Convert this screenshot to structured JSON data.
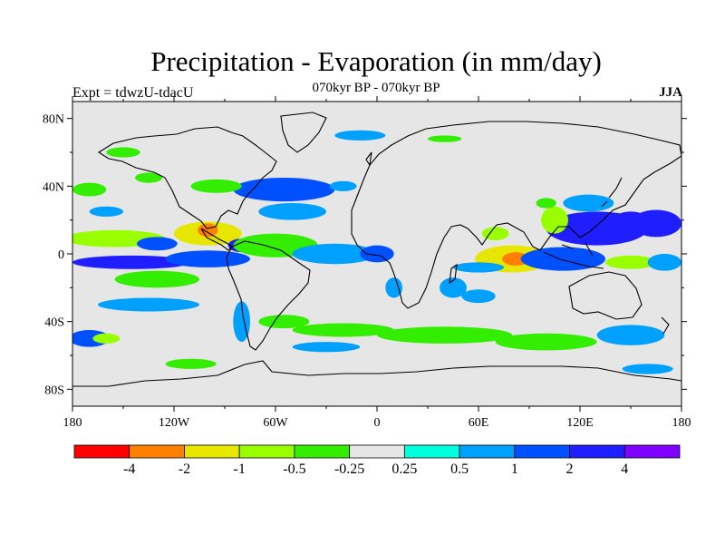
{
  "chart_data": {
    "type": "heatmap",
    "title": "Precipitation - Evaporation (in mm/day)",
    "subtitle": "070kyr BP - 070kyr BP",
    "left_string": "Expt = tdwzU-tdacU",
    "right_string": "JJA",
    "x_ticks": [
      "180",
      "120W",
      "60W",
      "0",
      "60E",
      "120E",
      "180"
    ],
    "y_ticks": [
      "80N",
      "40N",
      "0",
      "40S",
      "80S"
    ],
    "xlim": [
      -180,
      180
    ],
    "ylim": [
      -90,
      90
    ],
    "colorbar": {
      "levels": [
        "-4",
        "-2",
        "-1",
        "-0.5",
        "-0.25",
        "0.25",
        "0.5",
        "1",
        "2",
        "4"
      ],
      "colors": [
        "#ff0000",
        "#ff7f00",
        "#e6e600",
        "#99ff00",
        "#33ee00",
        "#e6e6e6",
        "#00ffdd",
        "#00a0ff",
        "#0050ff",
        "#1e1eff",
        "#8000ff"
      ]
    },
    "regions": [
      {
        "lon": -155,
        "lat": 9,
        "rx": 30,
        "ry": 5,
        "v": -0.8
      },
      {
        "lon": -100,
        "lat": 12,
        "rx": 20,
        "ry": 7,
        "v": -1.5
      },
      {
        "lon": -100,
        "lat": 14,
        "rx": 6,
        "ry": 4,
        "v": -2.2
      },
      {
        "lon": -130,
        "lat": 6,
        "rx": 12,
        "ry": 4,
        "v": 1.5
      },
      {
        "lon": -145,
        "lat": -5,
        "rx": 35,
        "ry": 4,
        "v": 2.2
      },
      {
        "lon": -100,
        "lat": -3,
        "rx": 25,
        "ry": 5,
        "v": 1.5
      },
      {
        "lon": -80,
        "lat": 5,
        "rx": 8,
        "ry": 4,
        "v": 2.5
      },
      {
        "lon": -60,
        "lat": 5,
        "rx": 25,
        "ry": 7,
        "v": -0.4
      },
      {
        "lon": -25,
        "lat": 0,
        "rx": 25,
        "ry": 6,
        "v": 0.8
      },
      {
        "lon": 0,
        "lat": 0,
        "rx": 10,
        "ry": 5,
        "v": 1.6
      },
      {
        "lon": -55,
        "lat": 38,
        "rx": 30,
        "ry": 7,
        "v": 1.2
      },
      {
        "lon": -50,
        "lat": 25,
        "rx": 20,
        "ry": 5,
        "v": 0.6
      },
      {
        "lon": -20,
        "lat": 40,
        "rx": 8,
        "ry": 3,
        "v": 0.6
      },
      {
        "lon": -95,
        "lat": 40,
        "rx": 15,
        "ry": 4,
        "v": -0.4
      },
      {
        "lon": -170,
        "lat": 38,
        "rx": 10,
        "ry": 4,
        "v": -0.4
      },
      {
        "lon": -135,
        "lat": 45,
        "rx": 8,
        "ry": 3,
        "v": -0.4
      },
      {
        "lon": -160,
        "lat": 25,
        "rx": 10,
        "ry": 3,
        "v": 0.5
      },
      {
        "lon": 80,
        "lat": -3,
        "rx": 22,
        "ry": 8,
        "v": -1.2
      },
      {
        "lon": 82,
        "lat": -3,
        "rx": 8,
        "ry": 4,
        "v": -3
      },
      {
        "lon": 60,
        "lat": -8,
        "rx": 15,
        "ry": 3,
        "v": 0.8
      },
      {
        "lon": 70,
        "lat": 12,
        "rx": 8,
        "ry": 4,
        "v": -0.8
      },
      {
        "lon": 110,
        "lat": -3,
        "rx": 25,
        "ry": 7,
        "v": 1.6
      },
      {
        "lon": 130,
        "lat": 15,
        "rx": 30,
        "ry": 10,
        "v": 2.2
      },
      {
        "lon": 150,
        "lat": 20,
        "rx": 10,
        "ry": 5,
        "v": 3
      },
      {
        "lon": 165,
        "lat": 18,
        "rx": 15,
        "ry": 8,
        "v": 2.5
      },
      {
        "lon": 125,
        "lat": 30,
        "rx": 15,
        "ry": 5,
        "v": 0.7
      },
      {
        "lon": 105,
        "lat": 20,
        "rx": 8,
        "ry": 8,
        "v": -0.6
      },
      {
        "lon": 100,
        "lat": 30,
        "rx": 6,
        "ry": 3,
        "v": -0.4
      },
      {
        "lon": 150,
        "lat": -5,
        "rx": 15,
        "ry": 4,
        "v": -0.6
      },
      {
        "lon": 170,
        "lat": -5,
        "rx": 10,
        "ry": 5,
        "v": 0.8
      },
      {
        "lon": 45,
        "lat": -20,
        "rx": 8,
        "ry": 6,
        "v": 0.7
      },
      {
        "lon": 60,
        "lat": -25,
        "rx": 10,
        "ry": 4,
        "v": 0.6
      },
      {
        "lon": 10,
        "lat": -20,
        "rx": 5,
        "ry": 6,
        "v": 0.5
      },
      {
        "lon": -80,
        "lat": -40,
        "rx": 5,
        "ry": 12,
        "v": 0.8
      },
      {
        "lon": -55,
        "lat": -40,
        "rx": 15,
        "ry": 4,
        "v": -0.4
      },
      {
        "lon": -130,
        "lat": -15,
        "rx": 25,
        "ry": 5,
        "v": -0.4
      },
      {
        "lon": -135,
        "lat": -30,
        "rx": 30,
        "ry": 4,
        "v": 0.6
      },
      {
        "lon": -170,
        "lat": -50,
        "rx": 12,
        "ry": 5,
        "v": 1.1
      },
      {
        "lon": -160,
        "lat": -50,
        "rx": 8,
        "ry": 3,
        "v": -0.6
      },
      {
        "lon": -20,
        "lat": -45,
        "rx": 30,
        "ry": 4,
        "v": -0.4
      },
      {
        "lon": 40,
        "lat": -48,
        "rx": 40,
        "ry": 5,
        "v": -0.4
      },
      {
        "lon": 100,
        "lat": -52,
        "rx": 30,
        "ry": 5,
        "v": -0.4
      },
      {
        "lon": 150,
        "lat": -48,
        "rx": 20,
        "ry": 6,
        "v": 0.7
      },
      {
        "lon": -30,
        "lat": -55,
        "rx": 20,
        "ry": 3,
        "v": 0.6
      },
      {
        "lon": -110,
        "lat": -65,
        "rx": 15,
        "ry": 3,
        "v": -0.4
      },
      {
        "lon": 160,
        "lat": -68,
        "rx": 15,
        "ry": 3,
        "v": 0.6
      },
      {
        "lon": -10,
        "lat": 70,
        "rx": 15,
        "ry": 3,
        "v": 0.6
      },
      {
        "lon": 40,
        "lat": 68,
        "rx": 10,
        "ry": 2,
        "v": -0.4
      },
      {
        "lon": -150,
        "lat": 60,
        "rx": 10,
        "ry": 3,
        "v": -0.4
      }
    ]
  }
}
